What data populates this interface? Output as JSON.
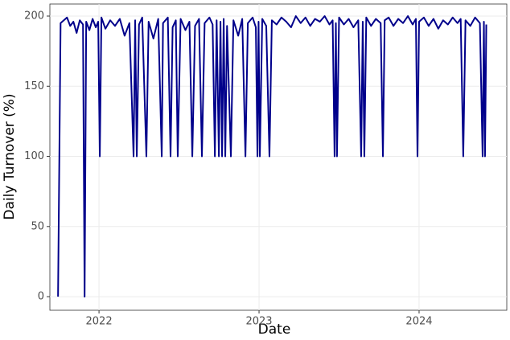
{
  "chart_data": {
    "type": "line",
    "xlabel": "Date",
    "ylabel": "Daily Turnover (%)",
    "xlim": [
      2021.693,
      2024.548
    ],
    "xticks": [
      2022,
      2023,
      2024
    ],
    "ylim": [
      -9.7,
      208.6
    ],
    "yticks": [
      0,
      50,
      100,
      150,
      200
    ],
    "grid": true,
    "x": [
      2021.744,
      2021.76,
      2021.78,
      2021.8,
      2021.82,
      2021.84,
      2021.86,
      2021.88,
      2021.9,
      2021.91,
      2021.92,
      2021.94,
      2021.96,
      2021.98,
      2021.995,
      2022.005,
      2022.015,
      2022.04,
      2022.07,
      2022.1,
      2022.13,
      2022.16,
      2022.19,
      2022.216,
      2022.226,
      2022.236,
      2022.25,
      2022.27,
      2022.296,
      2022.31,
      2022.34,
      2022.37,
      2022.392,
      2022.4,
      2022.43,
      2022.447,
      2022.46,
      2022.48,
      2022.492,
      2022.51,
      2022.54,
      2022.565,
      2022.583,
      2022.6,
      2022.625,
      2022.643,
      2022.66,
      2022.69,
      2022.71,
      2022.724,
      2022.735,
      2022.749,
      2022.759,
      2022.769,
      2022.779,
      2022.789,
      2022.8,
      2022.824,
      2022.84,
      2022.87,
      2022.895,
      2022.915,
      2022.93,
      2022.96,
      2022.98,
      2022.99,
      2022.997,
      2023.005,
      2023.02,
      2023.045,
      2023.065,
      2023.08,
      2023.11,
      2023.14,
      2023.17,
      2023.2,
      2023.23,
      2023.26,
      2023.29,
      2023.32,
      2023.35,
      2023.38,
      2023.41,
      2023.44,
      2023.46,
      2023.472,
      2023.48,
      2023.487,
      2023.5,
      2023.53,
      2023.56,
      2023.59,
      2023.62,
      2023.638,
      2023.648,
      2023.658,
      2023.67,
      2023.7,
      2023.73,
      2023.76,
      2023.774,
      2023.785,
      2023.81,
      2023.84,
      2023.87,
      2023.9,
      2023.93,
      2023.96,
      2023.98,
      2023.99,
      2024.0,
      2024.03,
      2024.06,
      2024.09,
      2024.12,
      2024.15,
      2024.18,
      2024.21,
      2024.24,
      2024.26,
      2024.276,
      2024.29,
      2024.32,
      2024.35,
      2024.38,
      2024.397,
      2024.405,
      2024.412,
      2024.42
    ],
    "series": [
      {
        "color": "#00008b",
        "values": [
          0,
          195,
          197,
          199,
          193,
          196,
          188,
          197,
          194,
          0,
          196,
          190,
          198,
          192,
          196,
          100,
          199,
          191,
          197,
          193,
          198,
          186,
          195,
          100,
          197,
          100,
          194,
          199,
          100,
          196,
          184,
          198,
          100,
          195,
          199,
          100,
          192,
          197,
          100,
          198,
          190,
          196,
          100,
          193,
          198,
          100,
          195,
          199,
          194,
          100,
          197,
          100,
          196,
          100,
          198,
          100,
          193,
          100,
          197,
          186,
          198,
          100,
          195,
          199,
          192,
          100,
          196,
          100,
          198,
          193,
          100,
          197,
          194,
          199,
          196,
          192,
          200,
          195,
          199,
          193,
          198,
          196,
          200,
          194,
          197,
          100,
          195,
          100,
          199,
          194,
          198,
          192,
          197,
          100,
          196,
          100,
          199,
          193,
          198,
          195,
          100,
          197,
          199,
          193,
          198,
          195,
          200,
          194,
          198,
          100,
          196,
          199,
          193,
          198,
          191,
          197,
          194,
          199,
          195,
          198,
          100,
          197,
          193,
          199,
          195,
          100,
          196,
          100,
          194
        ]
      }
    ]
  }
}
